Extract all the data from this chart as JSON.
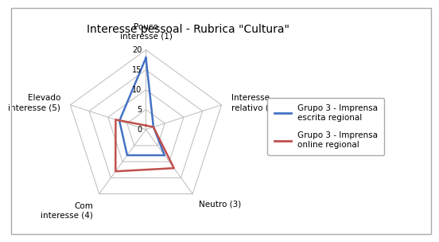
{
  "title": "Interesse pessoal - Rubrica \"Cultura\"",
  "categories": [
    "Pouco\ninteresse (1)",
    "Interesse\nrelativo (2)",
    "Neutro (3)",
    "Com\ninteresse (4)",
    "Elevado\ninteresse (5)"
  ],
  "series": [
    {
      "label": "Grupo 3 - Imprensa\nescrita regional",
      "values": [
        18,
        2,
        8,
        8,
        7
      ],
      "color": "#4472C4"
    },
    {
      "label": "Grupo 3 - Imprensa\nonline regional",
      "values": [
        1,
        2,
        12,
        13,
        8
      ],
      "color": "#C0504D"
    }
  ],
  "rmax": 20,
  "rticks": [
    0,
    5,
    10,
    15,
    20
  ],
  "grid_color": "#BBBBBB",
  "background_color": "#FFFFFF",
  "title_fontsize": 10,
  "label_fontsize": 7.5,
  "tick_fontsize": 7
}
